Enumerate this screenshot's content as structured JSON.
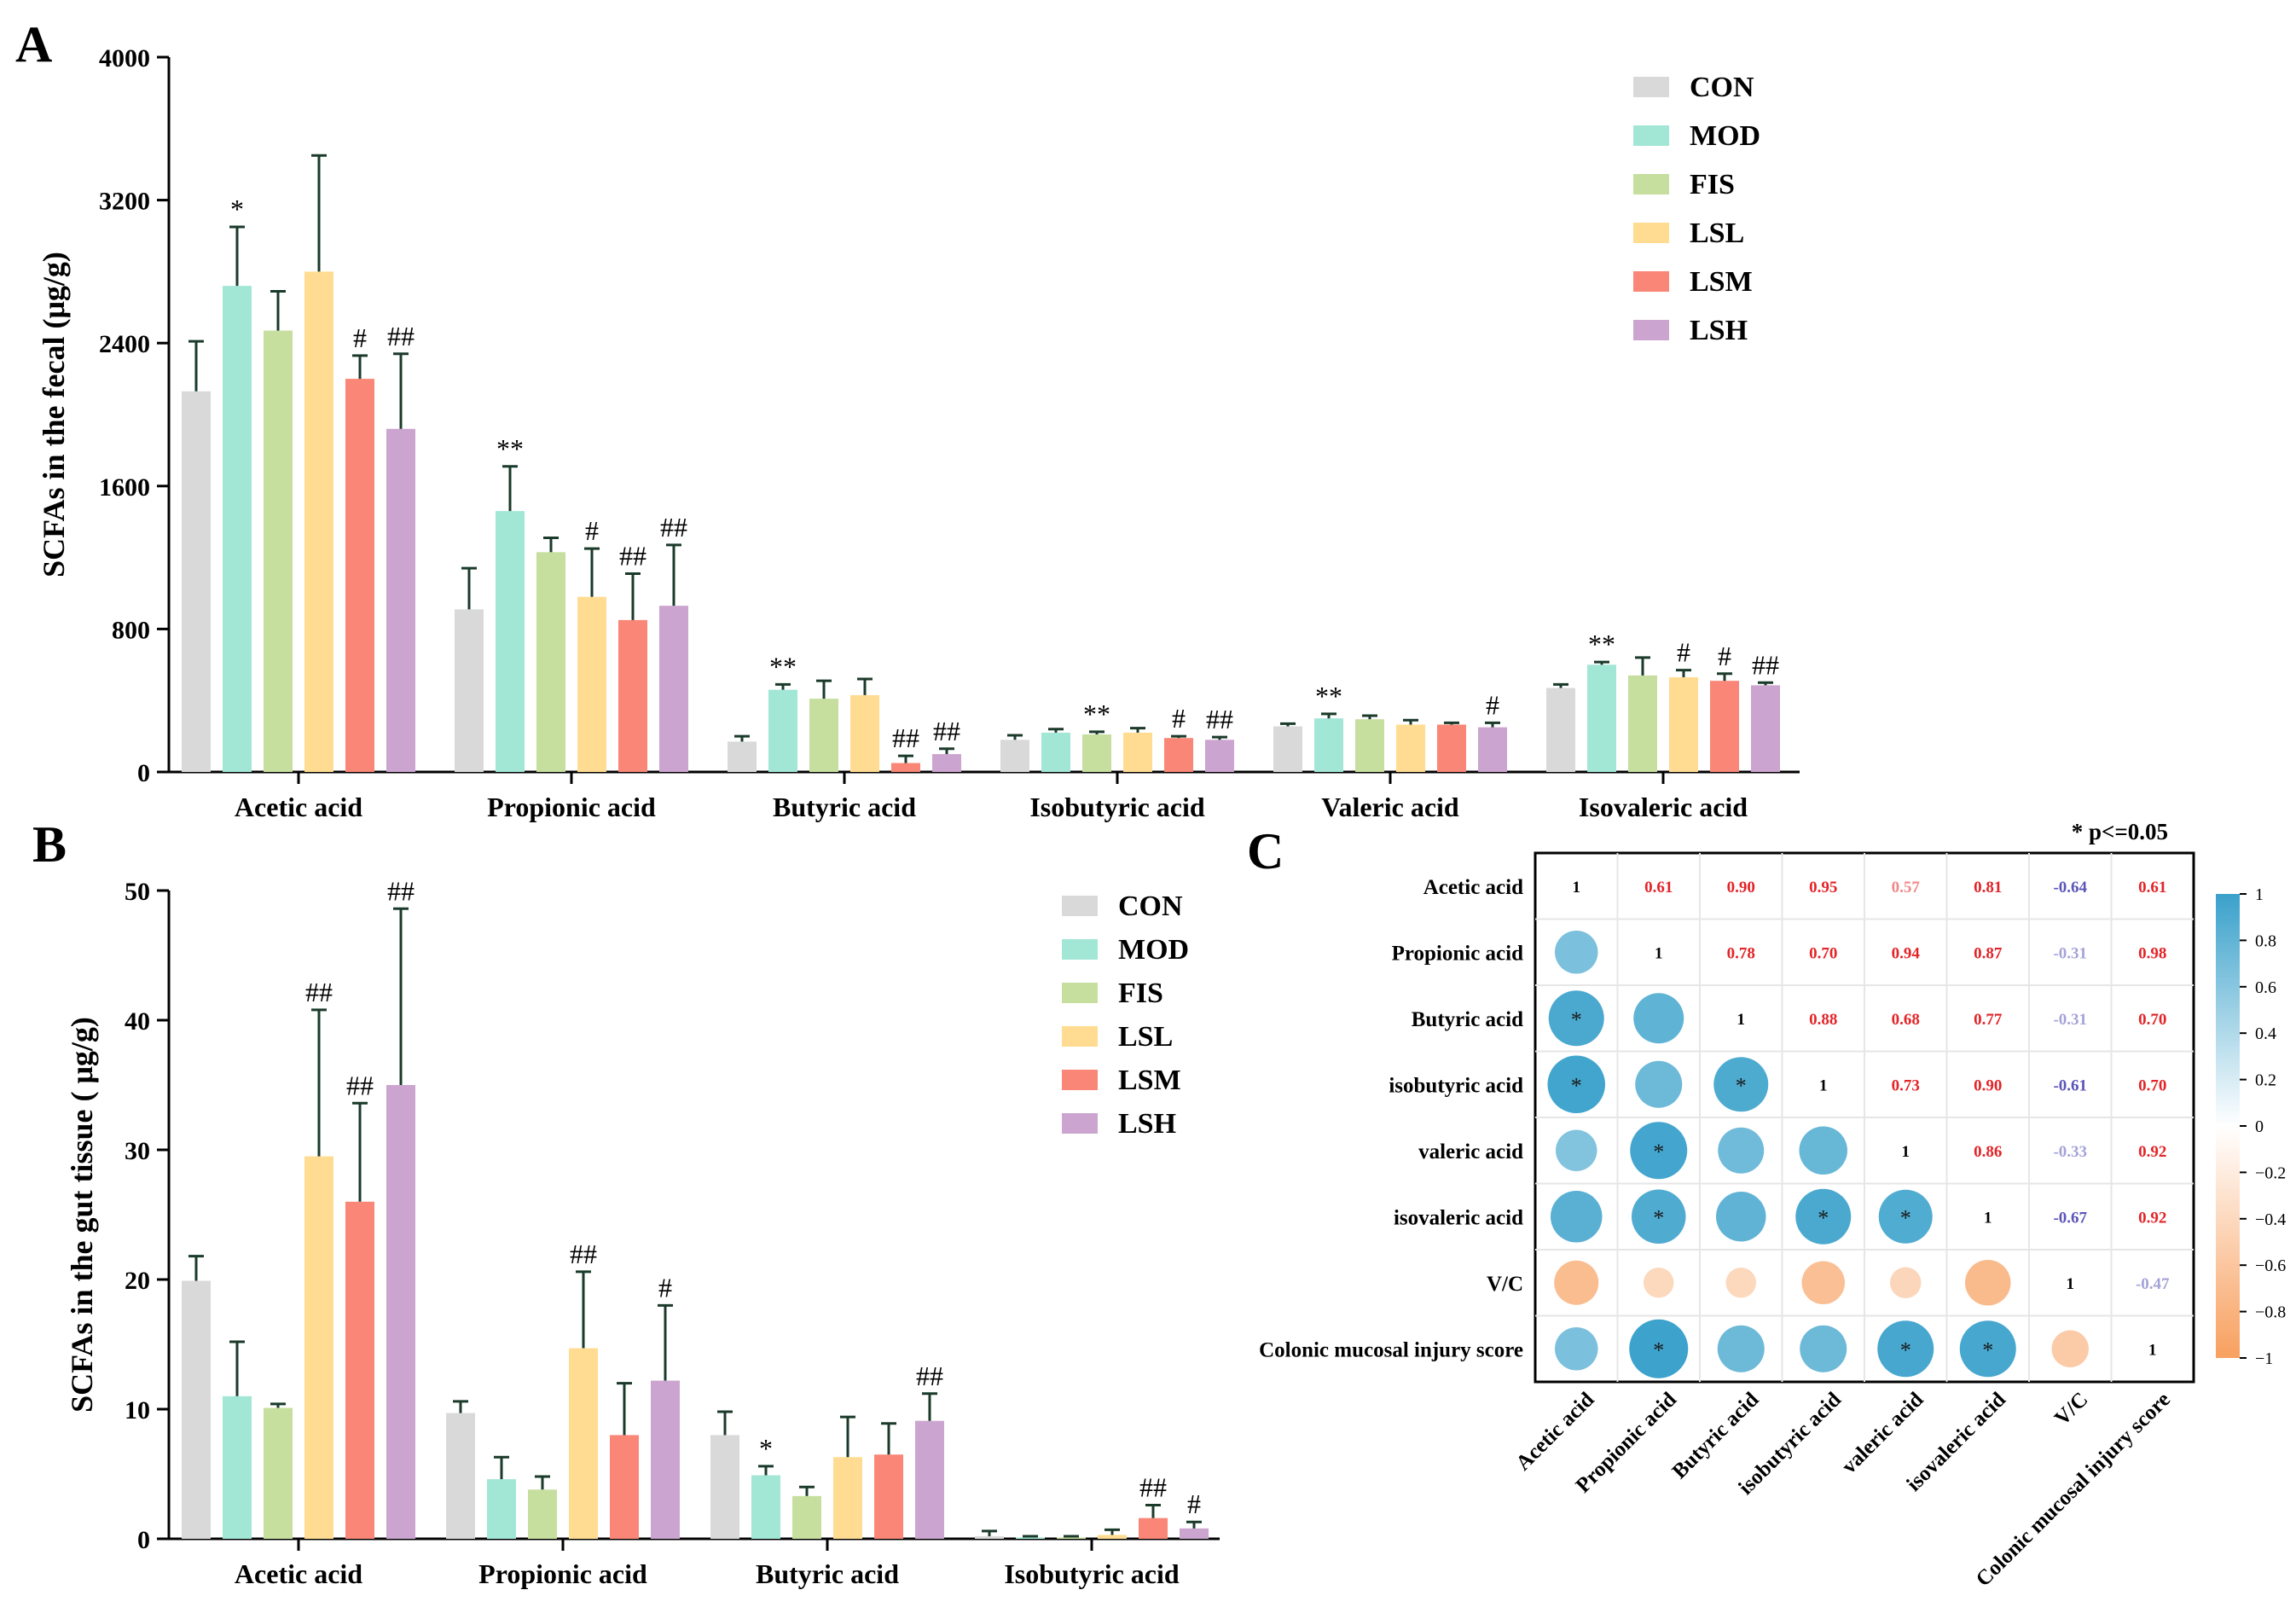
{
  "figure": {
    "panel_labels": [
      "A",
      "B",
      "C"
    ],
    "groups": [
      {
        "name": "CON",
        "color": "#d9d9d9"
      },
      {
        "name": "MOD",
        "color": "#a2e6d6"
      },
      {
        "name": "FIS",
        "color": "#c6df9f"
      },
      {
        "name": "LSL",
        "color": "#ffdc91"
      },
      {
        "name": "LSM",
        "color": "#f98676"
      },
      {
        "name": "LSH",
        "color": "#cba4cf"
      }
    ]
  },
  "chart_data": [
    {
      "panel": "A",
      "type": "bar",
      "title": "",
      "xlabel": "",
      "ylabel": "SCFAs in the fecal (μg/g)",
      "ylim": [
        0,
        4000
      ],
      "yticks": [
        0,
        800,
        1600,
        2400,
        3200,
        4000
      ],
      "legend": "top-right",
      "categories": [
        "Acetic acid",
        "Propionic acid",
        "Butyric acid",
        "Isobutyric acid",
        "Valeric acid",
        "Isovaleric acid"
      ],
      "series": [
        {
          "name": "CON",
          "values": [
            2130,
            910,
            170,
            180,
            255,
            470
          ],
          "errors": [
            280,
            230,
            30,
            25,
            15,
            20
          ],
          "annotations": [
            "",
            "",
            "",
            "",
            "",
            ""
          ]
        },
        {
          "name": "MOD",
          "values": [
            2720,
            1460,
            460,
            220,
            300,
            600
          ],
          "errors": [
            330,
            250,
            30,
            20,
            25,
            15
          ],
          "annotations": [
            "*",
            "**",
            "**",
            "",
            "**",
            "**"
          ]
        },
        {
          "name": "FIS",
          "values": [
            2470,
            1230,
            410,
            210,
            295,
            540
          ],
          "errors": [
            220,
            80,
            100,
            15,
            20,
            100
          ],
          "annotations": [
            "",
            "",
            "",
            "**",
            "",
            ""
          ]
        },
        {
          "name": "LSL",
          "values": [
            2800,
            980,
            430,
            220,
            265,
            530
          ],
          "errors": [
            650,
            270,
            90,
            25,
            25,
            40
          ],
          "annotations": [
            "",
            "#",
            "",
            "",
            "",
            "#"
          ]
        },
        {
          "name": "LSM",
          "values": [
            2200,
            850,
            50,
            190,
            265,
            510
          ],
          "errors": [
            130,
            260,
            40,
            10,
            10,
            40
          ],
          "annotations": [
            "#",
            "##",
            "##",
            "#",
            "",
            "#"
          ]
        },
        {
          "name": "LSH",
          "values": [
            1920,
            930,
            100,
            180,
            250,
            485
          ],
          "errors": [
            420,
            340,
            30,
            15,
            25,
            15
          ],
          "annotations": [
            "##",
            "##",
            "##",
            "##",
            "#",
            "##"
          ]
        }
      ]
    },
    {
      "panel": "B",
      "type": "bar",
      "title": "",
      "xlabel": "",
      "ylabel": "SCFAs in the gut tissue ( μg/g)",
      "ylim": [
        0,
        50
      ],
      "yticks": [
        0,
        10,
        20,
        30,
        40,
        50
      ],
      "legend": "top-right",
      "categories": [
        "Acetic acid",
        "Propionic acid",
        "Butyric acid",
        "Isobutyric acid"
      ],
      "series": [
        {
          "name": "CON",
          "values": [
            19.9,
            9.7,
            8.0,
            0.2
          ],
          "errors": [
            1.9,
            0.9,
            1.8,
            0.4
          ],
          "annotations": [
            "",
            "",
            "",
            ""
          ]
        },
        {
          "name": "MOD",
          "values": [
            11.0,
            4.6,
            4.9,
            0.1
          ],
          "errors": [
            4.2,
            1.7,
            0.7,
            0.1
          ],
          "annotations": [
            "",
            "",
            "*",
            ""
          ]
        },
        {
          "name": "FIS",
          "values": [
            10.1,
            3.8,
            3.3,
            0.1
          ],
          "errors": [
            0.3,
            1.0,
            0.7,
            0.1
          ],
          "annotations": [
            "",
            "",
            "",
            ""
          ]
        },
        {
          "name": "LSL",
          "values": [
            29.5,
            14.7,
            6.3,
            0.3
          ],
          "errors": [
            11.3,
            5.9,
            3.1,
            0.4
          ],
          "annotations": [
            "##",
            "##",
            "",
            ""
          ]
        },
        {
          "name": "LSM",
          "values": [
            26.0,
            8.0,
            6.5,
            1.6
          ],
          "errors": [
            7.6,
            4.0,
            2.4,
            1.0
          ],
          "annotations": [
            "##",
            "",
            "",
            "##"
          ]
        },
        {
          "name": "LSH",
          "values": [
            35.0,
            12.2,
            9.1,
            0.8
          ],
          "errors": [
            13.6,
            5.8,
            2.1,
            0.5
          ],
          "annotations": [
            "##",
            "#",
            "##",
            "#"
          ]
        }
      ]
    },
    {
      "panel": "C",
      "type": "heatmap",
      "title": "",
      "note": "* p<=0.05",
      "variables": [
        "Acetic acid",
        "Propionic acid",
        "Butyric acid",
        "isobutyric acid",
        "valeric acid",
        "isovaleric acid",
        "V/C",
        "Colonic mucosal injury score"
      ],
      "matrix": [
        [
          1,
          0.61,
          0.9,
          0.95,
          0.57,
          0.81,
          -0.64,
          0.61
        ],
        [
          0.61,
          1,
          0.78,
          0.7,
          0.94,
          0.87,
          -0.31,
          0.98
        ],
        [
          0.9,
          0.78,
          1,
          0.88,
          0.68,
          0.77,
          -0.31,
          0.7
        ],
        [
          0.95,
          0.7,
          0.88,
          1,
          0.73,
          0.9,
          -0.61,
          0.7
        ],
        [
          0.57,
          0.94,
          0.68,
          0.73,
          1,
          0.86,
          -0.33,
          0.92
        ],
        [
          0.81,
          0.87,
          0.77,
          0.9,
          0.86,
          1,
          -0.67,
          0.92
        ],
        [
          -0.64,
          -0.31,
          -0.31,
          -0.61,
          -0.33,
          -0.67,
          1,
          -0.47
        ],
        [
          0.61,
          0.98,
          0.7,
          0.7,
          0.92,
          0.92,
          -0.47,
          1
        ]
      ],
      "upper_labels": [
        [
          "1",
          "0.61",
          "0.90",
          "0.95",
          "0.57",
          "0.81",
          "-0.64",
          "0.61"
        ],
        [
          "",
          "1",
          "0.78",
          "0.70",
          "0.94",
          "0.87",
          "-0.31",
          "0.98"
        ],
        [
          "",
          "",
          "1",
          "0.88",
          "0.68",
          "0.77",
          "-0.31",
          "0.70"
        ],
        [
          "",
          "",
          "",
          "1",
          "0.73",
          "0.90",
          "-0.61",
          "0.70"
        ],
        [
          "",
          "",
          "",
          "",
          "1",
          "0.86",
          "-0.33",
          "0.92"
        ],
        [
          "",
          "",
          "",
          "",
          "",
          "1",
          "-0.67",
          "0.92"
        ],
        [
          "",
          "",
          "",
          "",
          "",
          "",
          "1",
          "-0.47"
        ],
        [
          "",
          "",
          "",
          "",
          "",
          "",
          "",
          "1"
        ]
      ],
      "significant": [
        [
          0,
          0,
          0,
          0,
          0,
          0,
          0,
          0
        ],
        [
          0,
          0,
          0,
          0,
          0,
          0,
          0,
          0
        ],
        [
          1,
          0,
          0,
          0,
          0,
          0,
          0,
          0
        ],
        [
          1,
          0,
          1,
          0,
          0,
          0,
          0,
          0
        ],
        [
          0,
          1,
          0,
          0,
          0,
          0,
          0,
          0
        ],
        [
          0,
          1,
          0,
          1,
          1,
          0,
          0,
          0
        ],
        [
          0,
          0,
          0,
          0,
          0,
          0,
          0,
          0
        ],
        [
          0,
          1,
          0,
          0,
          1,
          1,
          0,
          0
        ]
      ],
      "significance_mark": "*",
      "colorbar": {
        "ticks": [
          "1",
          "0.8",
          "0.6",
          "0.4",
          "0.2",
          "0",
          "−0.2",
          "−0.4",
          "−0.6",
          "−0.8",
          "−1"
        ],
        "positive_color": "#3aa1cb",
        "negative_color": "#f8a05f",
        "positive_text_color": "#e32428",
        "negative_text_color": "#5b55b8"
      }
    }
  ]
}
